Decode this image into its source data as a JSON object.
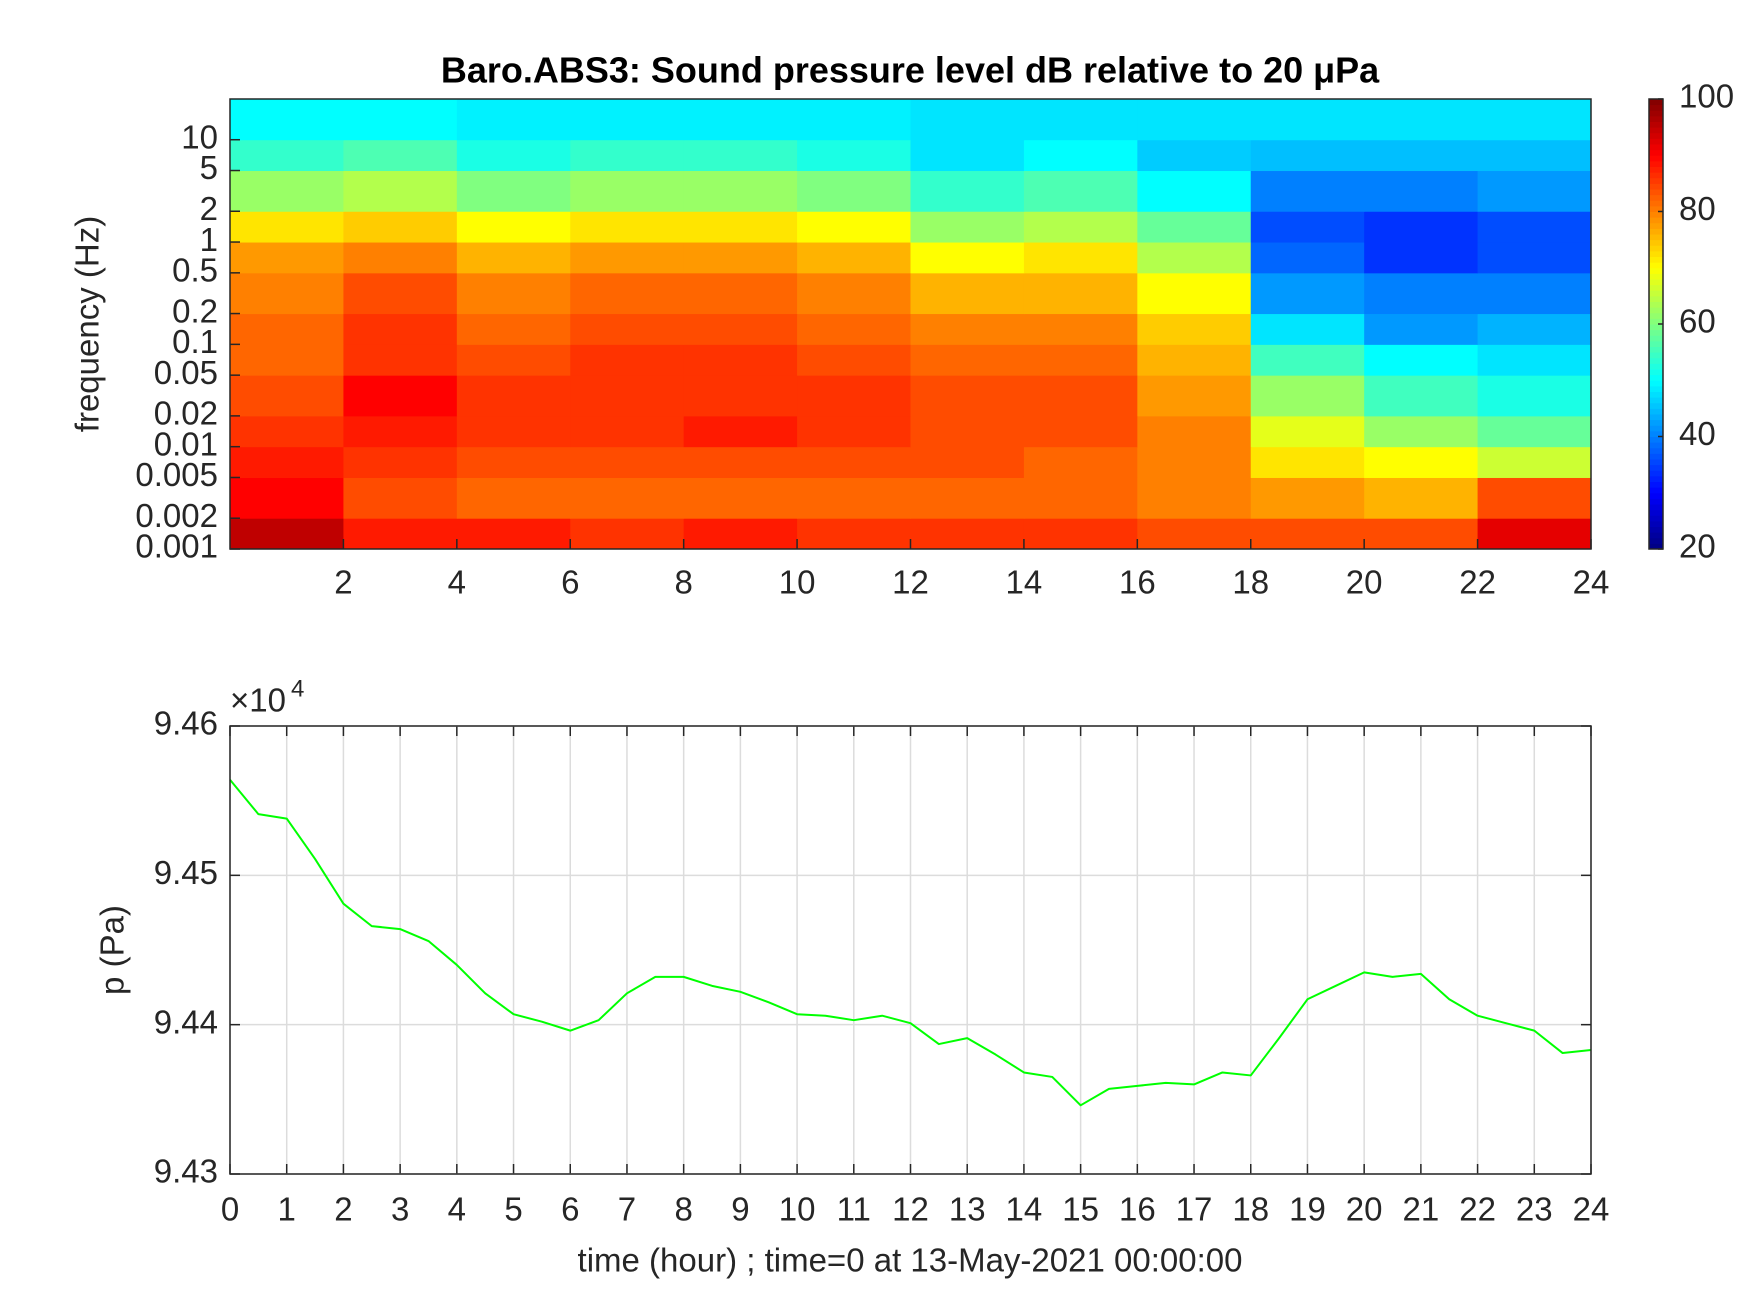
{
  "chart_data": [
    {
      "type": "heatmap",
      "title": "Baro.ABS3: Sound pressure level dB relative to 20 μPa",
      "ylabel": "frequency (Hz)",
      "xbins": [
        0,
        2,
        4,
        6,
        8,
        10,
        12,
        14,
        16,
        18,
        20,
        22,
        24
      ],
      "ybins": [
        0.001,
        0.002,
        0.005,
        0.01,
        0.02,
        0.05,
        0.1,
        0.2,
        0.5,
        1,
        2,
        5,
        10,
        25
      ],
      "values": [
        [
          95,
          88,
          88,
          86,
          88,
          86,
          86,
          86,
          84,
          84,
          84,
          92
        ],
        [
          90,
          84,
          82,
          82,
          82,
          82,
          82,
          82,
          80,
          78,
          76,
          84
        ],
        [
          88,
          86,
          84,
          84,
          84,
          84,
          84,
          82,
          80,
          72,
          70,
          66
        ],
        [
          86,
          88,
          86,
          86,
          88,
          86,
          84,
          84,
          80,
          68,
          62,
          58
        ],
        [
          84,
          90,
          86,
          86,
          86,
          86,
          84,
          84,
          78,
          62,
          55,
          52
        ],
        [
          82,
          86,
          84,
          86,
          86,
          84,
          82,
          82,
          76,
          55,
          50,
          48
        ],
        [
          82,
          86,
          82,
          84,
          84,
          82,
          80,
          80,
          74,
          48,
          42,
          44
        ],
        [
          80,
          84,
          80,
          82,
          82,
          80,
          76,
          76,
          70,
          42,
          40,
          40
        ],
        [
          78,
          80,
          76,
          78,
          78,
          76,
          70,
          72,
          64,
          38,
          34,
          36
        ],
        [
          72,
          74,
          70,
          72,
          72,
          70,
          62,
          64,
          58,
          36,
          34,
          36
        ],
        [
          62,
          64,
          60,
          62,
          62,
          60,
          54,
          56,
          50,
          40,
          40,
          42
        ],
        [
          54,
          56,
          52,
          54,
          54,
          52,
          48,
          50,
          46,
          45,
          45,
          45
        ],
        [
          50,
          50,
          49,
          49,
          49,
          49,
          48,
          48,
          48,
          48,
          48,
          48
        ]
      ],
      "xlim": [
        0,
        24
      ],
      "xticks": [
        2,
        4,
        6,
        8,
        10,
        12,
        14,
        16,
        18,
        20,
        22,
        24
      ],
      "ylim": [
        0.001,
        25
      ],
      "log_y": true,
      "yticks": [
        0.001,
        0.002,
        0.005,
        0.01,
        0.02,
        0.05,
        0.1,
        0.2,
        0.5,
        1,
        2,
        5,
        10
      ],
      "colormap": "jet",
      "clim": [
        20,
        100
      ],
      "cticks": [
        20,
        40,
        60,
        80,
        100
      ]
    },
    {
      "type": "line",
      "xlabel": "time (hour) ; time=0 at 13-May-2021 00:00:00",
      "ylabel": "p (Pa)",
      "yscale_label": {
        "base": "×10",
        "exponent": "4"
      },
      "x": [
        0,
        0.5,
        1,
        1.5,
        2,
        2.5,
        3,
        3.5,
        4,
        4.5,
        5,
        5.5,
        6,
        6.5,
        7,
        7.5,
        8,
        8.5,
        9,
        9.5,
        10,
        10.5,
        11,
        11.5,
        12,
        12.5,
        13,
        13.5,
        14,
        14.5,
        15,
        15.5,
        16,
        16.5,
        17,
        17.5,
        18,
        18.5,
        19,
        19.5,
        20,
        20.5,
        21,
        21.5,
        22,
        22.5,
        23,
        23.5,
        24
      ],
      "series": [
        {
          "color": "#00ff00",
          "values": [
            94564,
            94541,
            94538,
            94511,
            94481,
            94466,
            94464,
            94456,
            94440,
            94421,
            94407,
            94402,
            94396,
            94403,
            94421,
            94432,
            94432,
            94426,
            94422,
            94415,
            94407,
            94406,
            94403,
            94406,
            94401,
            94387,
            94391,
            94380,
            94368,
            94365,
            94346,
            94357,
            94359,
            94361,
            94360,
            94368,
            94366,
            94391,
            94417,
            94426,
            94435,
            94432,
            94434,
            94417,
            94406,
            94401,
            94396,
            94381,
            94383
          ]
        }
      ],
      "xlim": [
        0,
        24
      ],
      "xticks": [
        0,
        1,
        2,
        3,
        4,
        5,
        6,
        7,
        8,
        9,
        10,
        11,
        12,
        13,
        14,
        15,
        16,
        17,
        18,
        19,
        20,
        21,
        22,
        23,
        24
      ],
      "ylim": [
        94300,
        94600
      ],
      "yticks": [
        {
          "value": 94300,
          "label": "9.43"
        },
        {
          "value": 94400,
          "label": "9.44"
        },
        {
          "value": 94500,
          "label": "9.45"
        },
        {
          "value": 94600,
          "label": "9.46"
        }
      ],
      "grid": true
    }
  ]
}
